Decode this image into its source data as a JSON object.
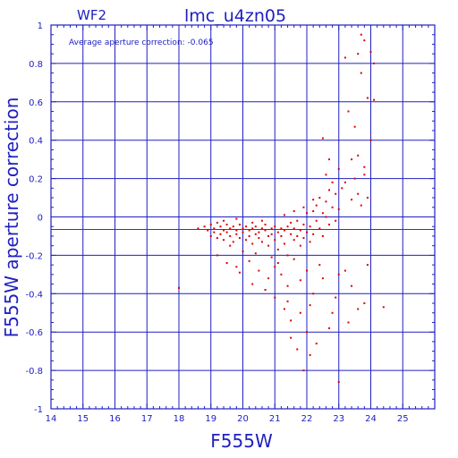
{
  "chart_data": {
    "type": "scatter",
    "chip_label": "WF2",
    "title": "lmc_u4zn05",
    "xlabel": "F555W",
    "ylabel": "F555W aperture correction",
    "annotation": "Average aperture correction: -0.065",
    "xlim": [
      14,
      26
    ],
    "ylim": [
      -1,
      1
    ],
    "x_ticks": [
      14,
      15,
      16,
      17,
      18,
      19,
      20,
      21,
      22,
      23,
      24,
      25
    ],
    "y_ticks": [
      -1,
      -0.8,
      -0.6,
      -0.4,
      -0.2,
      0,
      0.2,
      0.4,
      0.6,
      0.8,
      1
    ],
    "grid": true,
    "average_line": -0.065,
    "colors": {
      "axes": "#2020c0",
      "points": "#e00000",
      "average_line": "#e00000"
    },
    "points": [
      [
        18.6,
        -0.06
      ],
      [
        18.8,
        -0.05
      ],
      [
        18.9,
        -0.07
      ],
      [
        19.0,
        -0.04
      ],
      [
        19.0,
        -0.1
      ],
      [
        19.1,
        -0.06
      ],
      [
        19.1,
        -0.08
      ],
      [
        19.2,
        -0.03
      ],
      [
        19.2,
        -0.11
      ],
      [
        19.3,
        -0.05
      ],
      [
        19.3,
        -0.09
      ],
      [
        19.4,
        -0.07
      ],
      [
        19.4,
        -0.12
      ],
      [
        19.5,
        -0.04
      ],
      [
        19.5,
        -0.08
      ],
      [
        19.6,
        -0.06
      ],
      [
        19.6,
        -0.1
      ],
      [
        19.7,
        -0.05
      ],
      [
        19.7,
        -0.13
      ],
      [
        19.8,
        -0.07
      ],
      [
        19.8,
        -0.09
      ],
      [
        19.9,
        -0.04
      ],
      [
        19.9,
        -0.11
      ],
      [
        20.0,
        -0.06
      ],
      [
        20.0,
        -0.08
      ],
      [
        20.1,
        -0.05
      ],
      [
        20.1,
        -0.12
      ],
      [
        20.2,
        -0.07
      ],
      [
        20.2,
        -0.1
      ],
      [
        20.3,
        -0.06
      ],
      [
        20.3,
        -0.14
      ],
      [
        20.4,
        -0.05
      ],
      [
        20.4,
        -0.09
      ],
      [
        20.5,
        -0.08
      ],
      [
        20.5,
        -0.11
      ],
      [
        20.6,
        -0.06
      ],
      [
        20.6,
        -0.13
      ],
      [
        20.7,
        -0.07
      ],
      [
        20.7,
        -0.04
      ],
      [
        20.8,
        -0.1
      ],
      [
        20.8,
        -0.15
      ],
      [
        20.9,
        -0.06
      ],
      [
        20.9,
        -0.09
      ],
      [
        21.0,
        -0.05
      ],
      [
        21.0,
        -0.12
      ],
      [
        21.1,
        -0.08
      ],
      [
        21.1,
        -0.17
      ],
      [
        21.2,
        -0.06
      ],
      [
        21.2,
        -0.1
      ],
      [
        21.3,
        -0.07
      ],
      [
        21.3,
        -0.14
      ],
      [
        21.4,
        -0.05
      ],
      [
        21.4,
        -0.2
      ],
      [
        21.5,
        -0.09
      ],
      [
        21.5,
        -0.03
      ],
      [
        21.6,
        -0.12
      ],
      [
        21.6,
        -0.06
      ],
      [
        21.7,
        -0.1
      ],
      [
        21.7,
        -0.02
      ],
      [
        21.8,
        -0.15
      ],
      [
        21.8,
        -0.07
      ],
      [
        21.9,
        -0.04
      ],
      [
        21.9,
        -0.11
      ],
      [
        22.0,
        -0.08
      ],
      [
        22.0,
        0.02
      ],
      [
        22.1,
        -0.05
      ],
      [
        22.1,
        -0.13
      ],
      [
        22.2,
        0.03
      ],
      [
        22.2,
        -0.09
      ],
      [
        22.3,
        -0.02
      ],
      [
        22.3,
        0.06
      ],
      [
        22.4,
        -0.06
      ],
      [
        22.4,
        0.1
      ],
      [
        22.5,
        0.02
      ],
      [
        22.5,
        -0.1
      ],
      [
        22.6,
        0.08
      ],
      [
        22.6,
        0.0
      ],
      [
        22.7,
        0.14
      ],
      [
        22.7,
        -0.04
      ],
      [
        22.8,
        0.05
      ],
      [
        22.8,
        0.18
      ],
      [
        22.9,
        0.12
      ],
      [
        22.9,
        -0.02
      ],
      [
        23.0,
        0.04
      ],
      [
        22.6,
        0.22
      ],
      [
        22.7,
        0.3
      ],
      [
        22.5,
        0.41
      ],
      [
        23.0,
        0.25
      ],
      [
        23.3,
        0.55
      ],
      [
        23.4,
        0.3
      ],
      [
        23.2,
        0.18
      ],
      [
        23.5,
        0.47
      ],
      [
        23.6,
        0.12
      ],
      [
        23.7,
        0.06
      ],
      [
        23.5,
        0.2
      ],
      [
        23.8,
        0.26
      ],
      [
        23.9,
        0.62
      ],
      [
        23.6,
        0.85
      ],
      [
        23.2,
        0.83
      ],
      [
        23.7,
        0.95
      ],
      [
        23.8,
        0.92
      ],
      [
        24.0,
        0.86
      ],
      [
        24.1,
        0.8
      ],
      [
        24.1,
        0.61
      ],
      [
        23.7,
        0.75
      ],
      [
        23.9,
        0.1
      ],
      [
        24.0,
        0.4
      ],
      [
        23.8,
        0.22
      ],
      [
        19.2,
        -0.2
      ],
      [
        19.5,
        -0.24
      ],
      [
        19.8,
        -0.26
      ],
      [
        20.2,
        -0.23
      ],
      [
        20.5,
        -0.28
      ],
      [
        20.8,
        -0.32
      ],
      [
        21.0,
        -0.26
      ],
      [
        21.2,
        -0.3
      ],
      [
        21.4,
        -0.36
      ],
      [
        21.6,
        -0.22
      ],
      [
        21.8,
        -0.33
      ],
      [
        22.0,
        -0.28
      ],
      [
        22.2,
        -0.4
      ],
      [
        22.4,
        -0.25
      ],
      [
        21.0,
        -0.42
      ],
      [
        21.3,
        -0.48
      ],
      [
        21.5,
        -0.54
      ],
      [
        21.8,
        -0.5
      ],
      [
        22.0,
        -0.6
      ],
      [
        21.5,
        -0.63
      ],
      [
        21.7,
        -0.69
      ],
      [
        22.1,
        -0.72
      ],
      [
        22.3,
        -0.66
      ],
      [
        21.9,
        -0.8
      ],
      [
        22.8,
        -0.5
      ],
      [
        22.9,
        -0.42
      ],
      [
        23.0,
        -0.3
      ],
      [
        23.0,
        -0.86
      ],
      [
        23.2,
        -0.28
      ],
      [
        23.4,
        -0.36
      ],
      [
        23.6,
        -0.48
      ],
      [
        23.8,
        -0.45
      ],
      [
        24.4,
        -0.47
      ],
      [
        23.9,
        -0.25
      ],
      [
        20.3,
        -0.35
      ],
      [
        19.9,
        -0.29
      ],
      [
        20.7,
        -0.38
      ],
      [
        21.4,
        -0.44
      ],
      [
        18.0,
        -0.37
      ],
      [
        19.6,
        -0.15
      ],
      [
        20.0,
        -0.18
      ],
      [
        20.4,
        -0.19
      ],
      [
        20.9,
        -0.21
      ],
      [
        21.1,
        -0.24
      ],
      [
        22.5,
        -0.32
      ],
      [
        22.7,
        -0.58
      ],
      [
        22.1,
        -0.46
      ],
      [
        23.3,
        -0.55
      ],
      [
        19.4,
        -0.02
      ],
      [
        19.8,
        -0.01
      ],
      [
        20.3,
        -0.03
      ],
      [
        20.6,
        -0.02
      ],
      [
        21.3,
        0.01
      ],
      [
        21.6,
        0.03
      ],
      [
        21.9,
        0.05
      ],
      [
        22.2,
        0.09
      ],
      [
        23.1,
        0.15
      ],
      [
        23.4,
        0.09
      ],
      [
        23.6,
        0.32
      ]
    ]
  }
}
